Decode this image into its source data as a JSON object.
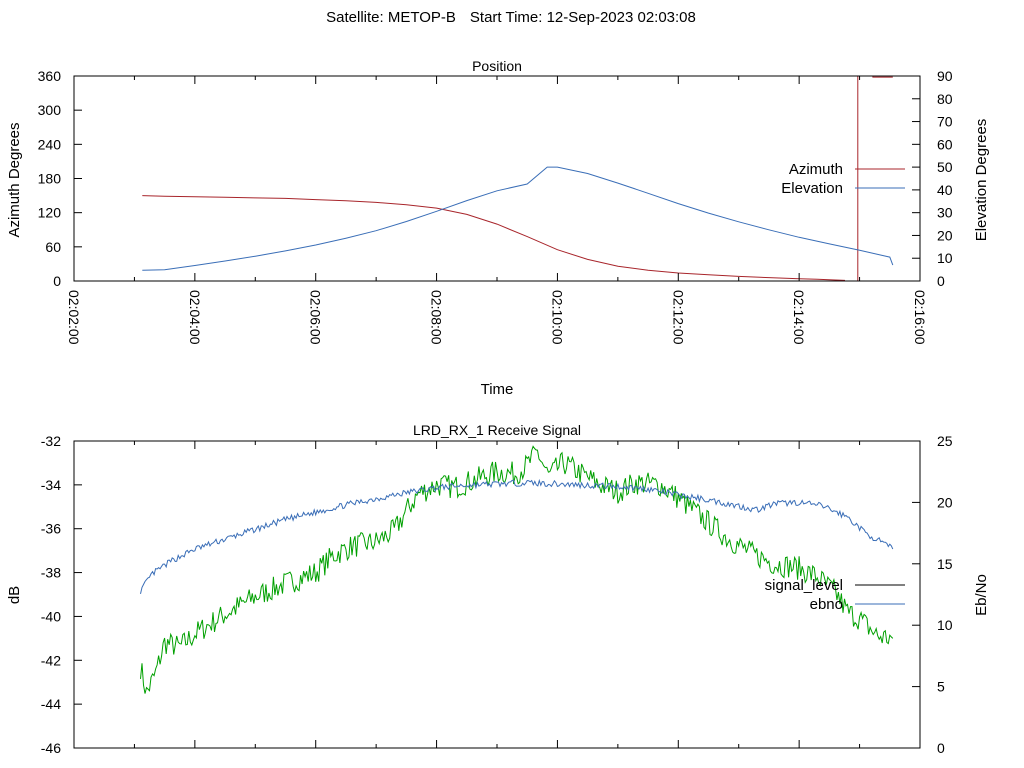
{
  "header": {
    "satellite": "Satellite: METOP-B",
    "start_time": "Start Time: 12-Sep-2023 02:03:08"
  },
  "chart_data": [
    {
      "type": "line",
      "title": "Position",
      "xlabel": "Time",
      "ylabel": "Azimuth Degrees",
      "y2label": "Elevation Degrees",
      "x_tick_labels": [
        "02:02:00",
        "02:04:00",
        "02:06:00",
        "02:08:00",
        "02:10:00",
        "02:12:00",
        "02:14:00",
        "02:16:00"
      ],
      "x_minor_per_major": 2,
      "xlim_minutes": [
        2,
        16
      ],
      "ylim": [
        0,
        360
      ],
      "yticks": [
        0,
        60,
        120,
        180,
        240,
        300,
        360
      ],
      "y2lim": [
        0,
        90
      ],
      "y2ticks": [
        0,
        10,
        20,
        30,
        40,
        50,
        60,
        70,
        80,
        90
      ],
      "legend_position": "right",
      "series": [
        {
          "name": "Azimuth",
          "axis": "y",
          "color": "#a8252b",
          "points": [
            [
              3.13,
              150
            ],
            [
              3.5,
              149
            ],
            [
              4,
              148
            ],
            [
              4.5,
              147
            ],
            [
              5,
              146
            ],
            [
              5.5,
              145
            ],
            [
              6,
              143
            ],
            [
              6.5,
              141
            ],
            [
              7,
              138
            ],
            [
              7.5,
              134
            ],
            [
              8,
              128
            ],
            [
              8.5,
              117
            ],
            [
              9,
              100
            ],
            [
              9.5,
              78
            ],
            [
              10,
              55
            ],
            [
              10.5,
              38
            ],
            [
              11,
              26
            ],
            [
              11.5,
              19
            ],
            [
              12,
              14
            ],
            [
              12.5,
              11
            ],
            [
              13,
              8
            ],
            [
              13.5,
              6
            ],
            [
              14,
              4
            ],
            [
              14.3,
              3
            ],
            [
              14.55,
              2
            ],
            [
              14.75,
              1
            ],
            [
              14.75,
              0
            ],
            [
              14.97,
              0
            ],
            [
              14.97,
              360
            ],
            [
              15.22,
              360
            ],
            [
              15.22,
              358
            ],
            [
              15.55,
              358
            ]
          ]
        },
        {
          "name": "Elevation",
          "axis": "y2",
          "color": "#3a6eb7",
          "points": [
            [
              3.13,
              4.7
            ],
            [
              3.5,
              4.9
            ],
            [
              4,
              6.8
            ],
            [
              4.5,
              8.8
            ],
            [
              5,
              10.9
            ],
            [
              5.5,
              13.2
            ],
            [
              6,
              15.8
            ],
            [
              6.5,
              18.8
            ],
            [
              7,
              22.1
            ],
            [
              7.5,
              26.1
            ],
            [
              8,
              30.6
            ],
            [
              8.5,
              35.3
            ],
            [
              9,
              39.6
            ],
            [
              9.5,
              42.6
            ],
            [
              9.83,
              50
            ],
            [
              10,
              50
            ],
            [
              10.5,
              47.2
            ],
            [
              11,
              43
            ],
            [
              11.5,
              38.5
            ],
            [
              12,
              34
            ],
            [
              12.5,
              29.8
            ],
            [
              13,
              26
            ],
            [
              13.5,
              22.5
            ],
            [
              14,
              19.2
            ],
            [
              14.5,
              16.3
            ],
            [
              15,
              13.5
            ],
            [
              15.5,
              10.5
            ],
            [
              15.55,
              7
            ]
          ]
        }
      ]
    },
    {
      "type": "line",
      "title": "LRD_RX_1 Receive Signal",
      "ylabel": "dB",
      "y2label": "Eb/No",
      "xlim_minutes": [
        2,
        16
      ],
      "x_minor_per_major": 2,
      "ylim": [
        -46,
        -32
      ],
      "yticks": [
        -46,
        -44,
        -42,
        -40,
        -38,
        -36,
        -34,
        -32
      ],
      "y2lim": [
        0,
        25
      ],
      "y2ticks": [
        0,
        5,
        10,
        15,
        20,
        25
      ],
      "legend_position": "right",
      "legend_line_color": "#000000",
      "series": [
        {
          "name": "signal_level",
          "axis": "y",
          "color": "#00a000",
          "noise": 0.55,
          "seed": 7,
          "points": [
            [
              3.1,
              -42.3
            ],
            [
              3.2,
              -43.5
            ],
            [
              3.35,
              -42.6
            ],
            [
              3.5,
              -41.2
            ],
            [
              3.75,
              -41.4
            ],
            [
              4,
              -40.8
            ],
            [
              4.5,
              -39.9
            ],
            [
              5,
              -39.1
            ],
            [
              5.5,
              -38.5
            ],
            [
              6,
              -38
            ],
            [
              6.3,
              -37.2
            ],
            [
              6.6,
              -36.8
            ],
            [
              7,
              -36.6
            ],
            [
              7.3,
              -36.1
            ],
            [
              7.5,
              -35.2
            ],
            [
              7.7,
              -34.4
            ],
            [
              8,
              -34
            ],
            [
              8.3,
              -34.1
            ],
            [
              8.6,
              -33.8
            ],
            [
              9,
              -33.4
            ],
            [
              9.3,
              -33.5
            ],
            [
              9.5,
              -33.1
            ],
            [
              9.67,
              -32.5
            ],
            [
              9.85,
              -33.6
            ],
            [
              10.1,
              -33
            ],
            [
              10.4,
              -33.5
            ],
            [
              10.7,
              -34
            ],
            [
              11,
              -34.3
            ],
            [
              11.3,
              -33.9
            ],
            [
              11.7,
              -34
            ],
            [
              12,
              -34.6
            ],
            [
              12.4,
              -35.5
            ],
            [
              12.8,
              -36.4
            ],
            [
              13.2,
              -37.1
            ],
            [
              13.6,
              -37.6
            ],
            [
              14,
              -37.8
            ],
            [
              14.3,
              -38.2
            ],
            [
              14.6,
              -38.9
            ],
            [
              14.8,
              -39.8
            ],
            [
              15,
              -40.1
            ],
            [
              15.3,
              -40.9
            ],
            [
              15.55,
              -41
            ]
          ]
        },
        {
          "name": "ebno",
          "axis": "y2",
          "color": "#3a6eb7",
          "noise": 0.25,
          "seed": 13,
          "points": [
            [
              3.1,
              12.8
            ],
            [
              3.3,
              14.2
            ],
            [
              3.6,
              15.2
            ],
            [
              4,
              16.2
            ],
            [
              4.5,
              17
            ],
            [
              5,
              17.8
            ],
            [
              5.5,
              18.6
            ],
            [
              6,
              19.2
            ],
            [
              6.5,
              19.8
            ],
            [
              7,
              20.3
            ],
            [
              7.5,
              20.8
            ],
            [
              8,
              21.2
            ],
            [
              8.5,
              21.4
            ],
            [
              9,
              21.5
            ],
            [
              9.5,
              21.6
            ],
            [
              10,
              21.5
            ],
            [
              10.5,
              21.4
            ],
            [
              11,
              21.3
            ],
            [
              11.5,
              21.1
            ],
            [
              12,
              20.6
            ],
            [
              12.5,
              20.2
            ],
            [
              13,
              19.7
            ],
            [
              13.3,
              19.4
            ],
            [
              13.6,
              19.9
            ],
            [
              14,
              20
            ],
            [
              14.4,
              19.7
            ],
            [
              14.8,
              18.8
            ],
            [
              15.1,
              17.5
            ],
            [
              15.35,
              16.8
            ],
            [
              15.55,
              16.2
            ]
          ]
        }
      ]
    }
  ]
}
